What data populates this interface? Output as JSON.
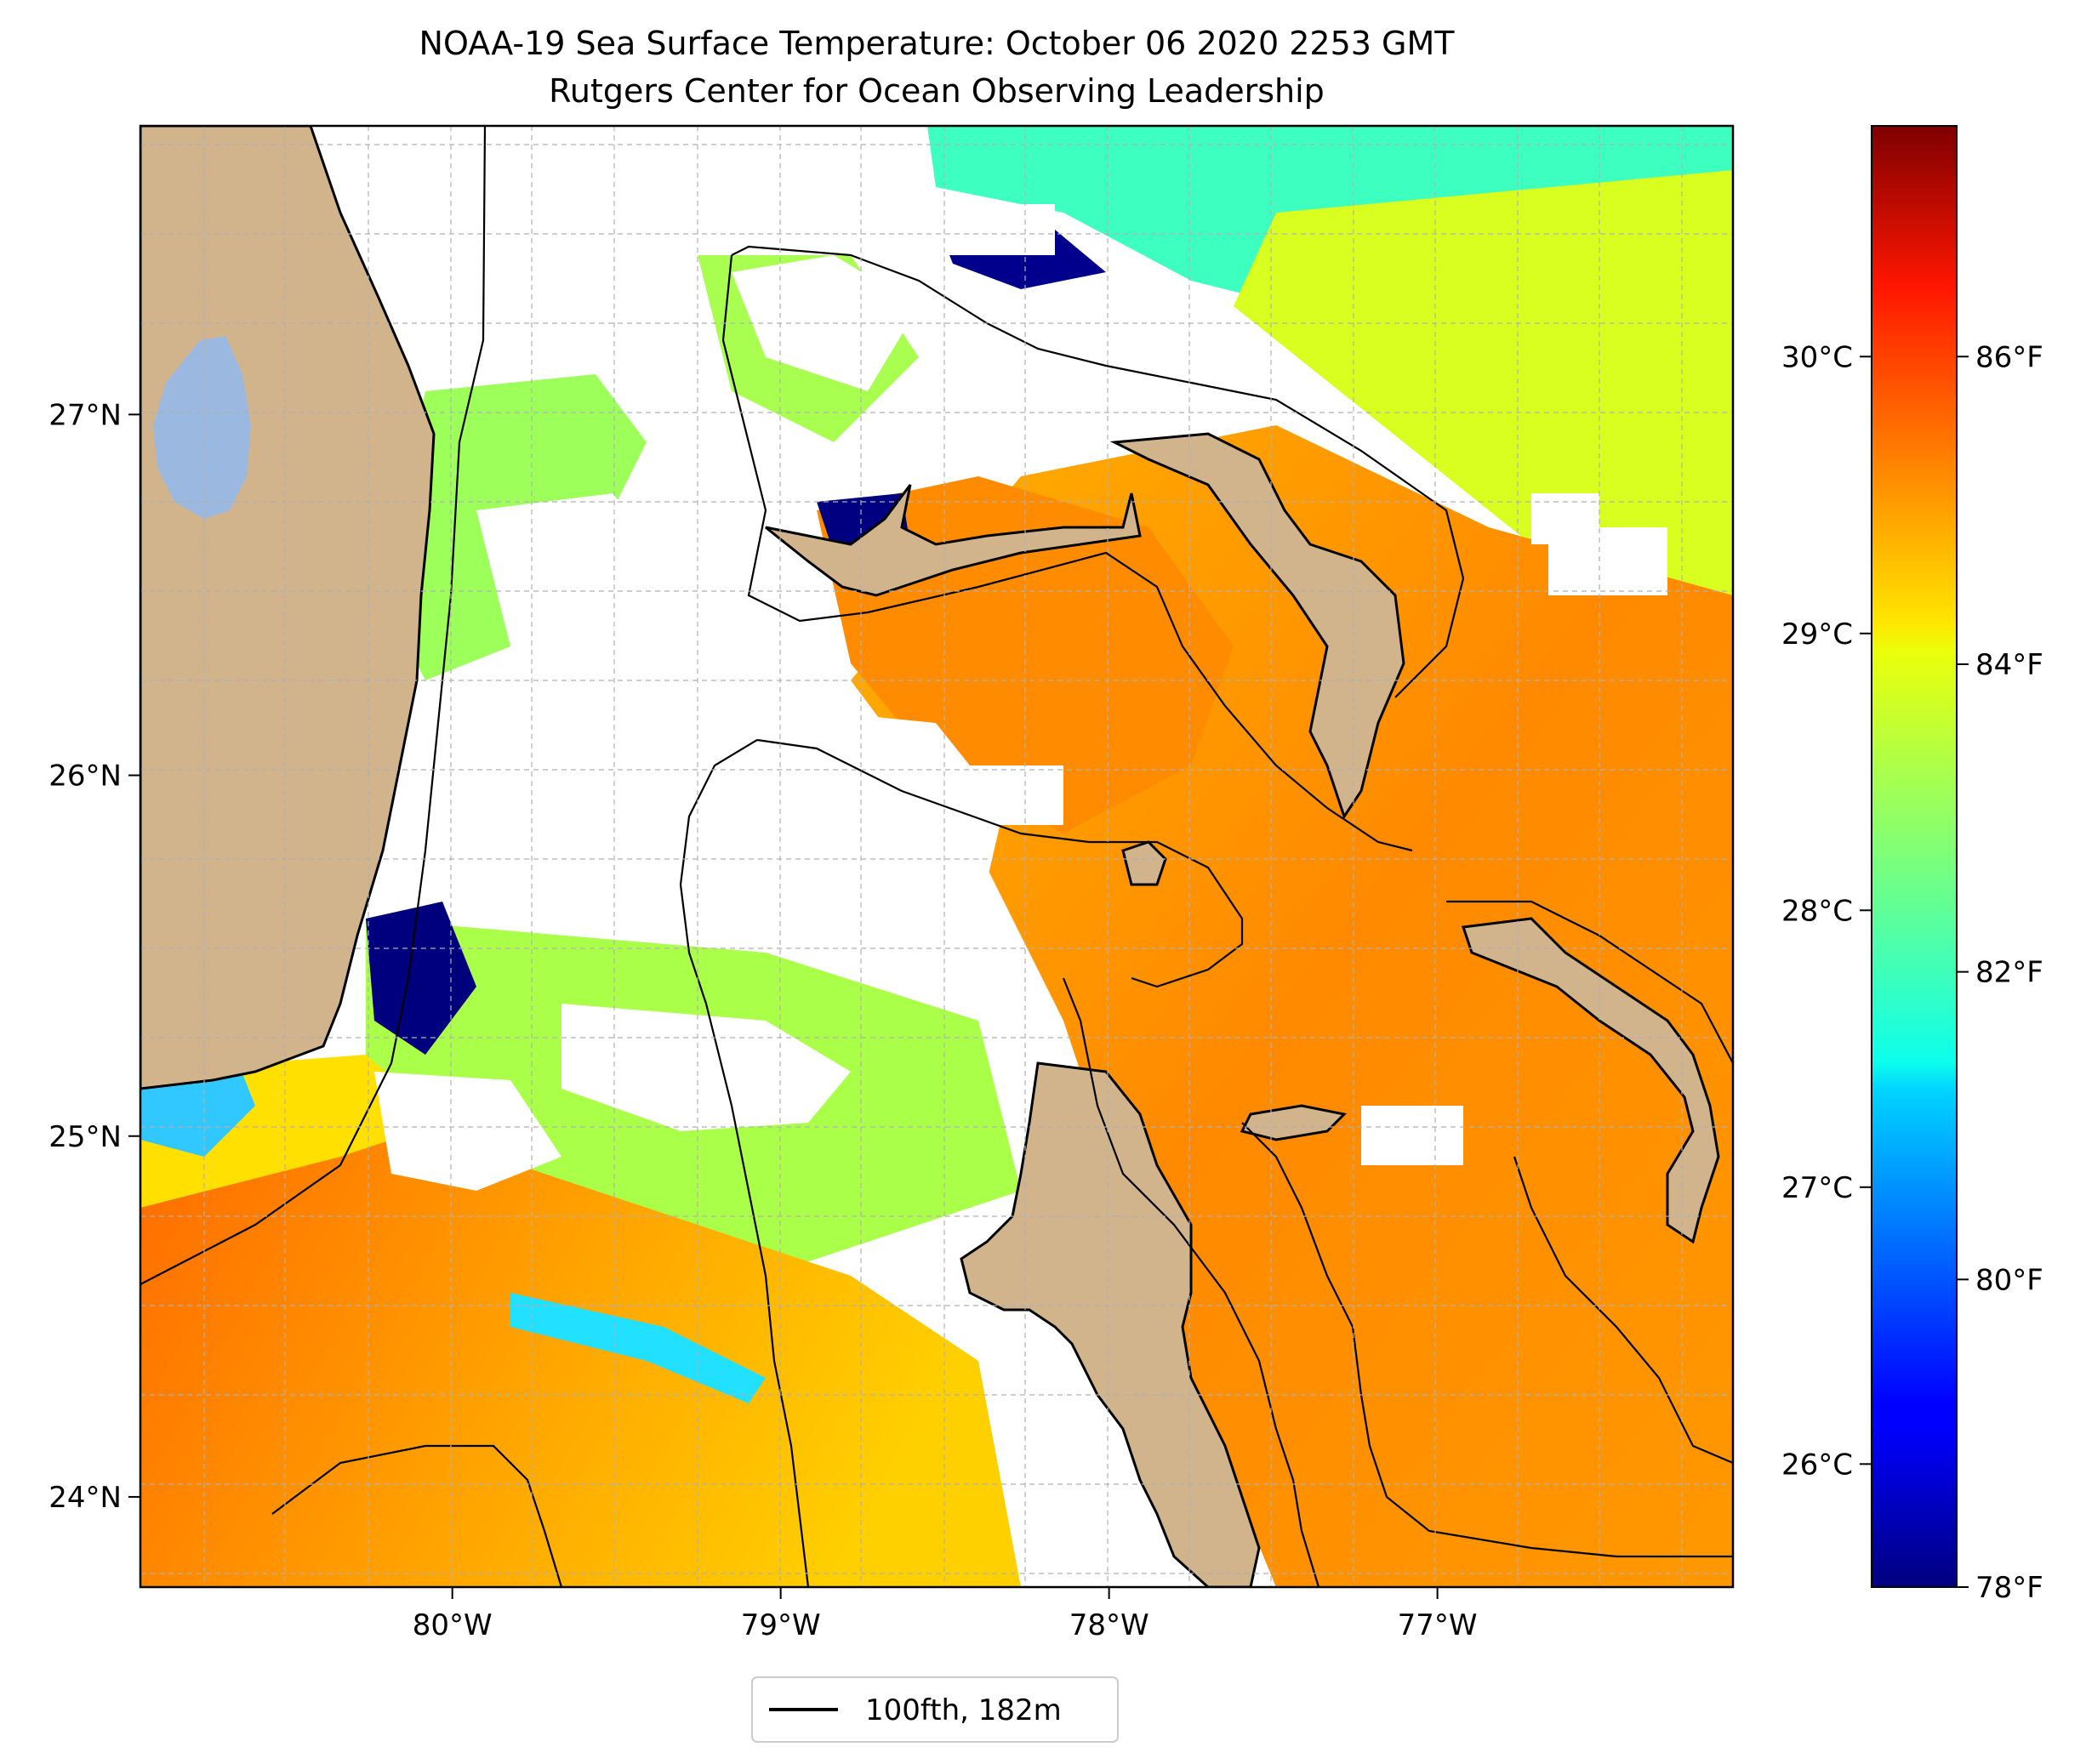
{
  "title_line1": "NOAA-19 Sea Surface Temperature: October 06 2020 2253 GMT",
  "title_line2": "Rutgers Center for Ocean Observing Leadership",
  "map": {
    "lon_range": [
      -80.95,
      -76.1
    ],
    "lat_range": [
      23.75,
      27.8
    ],
    "xticks": [
      {
        "lon": -80,
        "label": "80°W"
      },
      {
        "lon": -79,
        "label": "79°W"
      },
      {
        "lon": -78,
        "label": "78°W"
      },
      {
        "lon": -77,
        "label": "77°W"
      }
    ],
    "yticks": [
      {
        "lat": 27,
        "label": "27°N"
      },
      {
        "lat": 26,
        "label": "26°N"
      },
      {
        "lat": 25,
        "label": "25°N"
      },
      {
        "lat": 24,
        "label": "24°N"
      }
    ],
    "gridlines": true,
    "land_color": "#d2b48c",
    "lake_color": "#9bb8e0",
    "cloud_color": "#ffffff",
    "colormap": "jet"
  },
  "colorbar": {
    "celsius_ticks": [
      {
        "value": 30,
        "label": "30°C"
      },
      {
        "value": 29,
        "label": "29°C"
      },
      {
        "value": 28,
        "label": "28°C"
      },
      {
        "value": 27,
        "label": "27°C"
      },
      {
        "value": 26,
        "label": "26°C"
      }
    ],
    "fahrenheit_ticks": [
      {
        "value": 86,
        "label": "86°F"
      },
      {
        "value": 84,
        "label": "84°F"
      },
      {
        "value": 82,
        "label": "82°F"
      },
      {
        "value": 80,
        "label": "80°F"
      },
      {
        "value": 78,
        "label": "78°F"
      }
    ],
    "range_f": [
      78,
      87.5
    ]
  },
  "legend": {
    "entry_label": "100fth, 182m",
    "line_color": "#000000",
    "placement": "bottom-center"
  }
}
